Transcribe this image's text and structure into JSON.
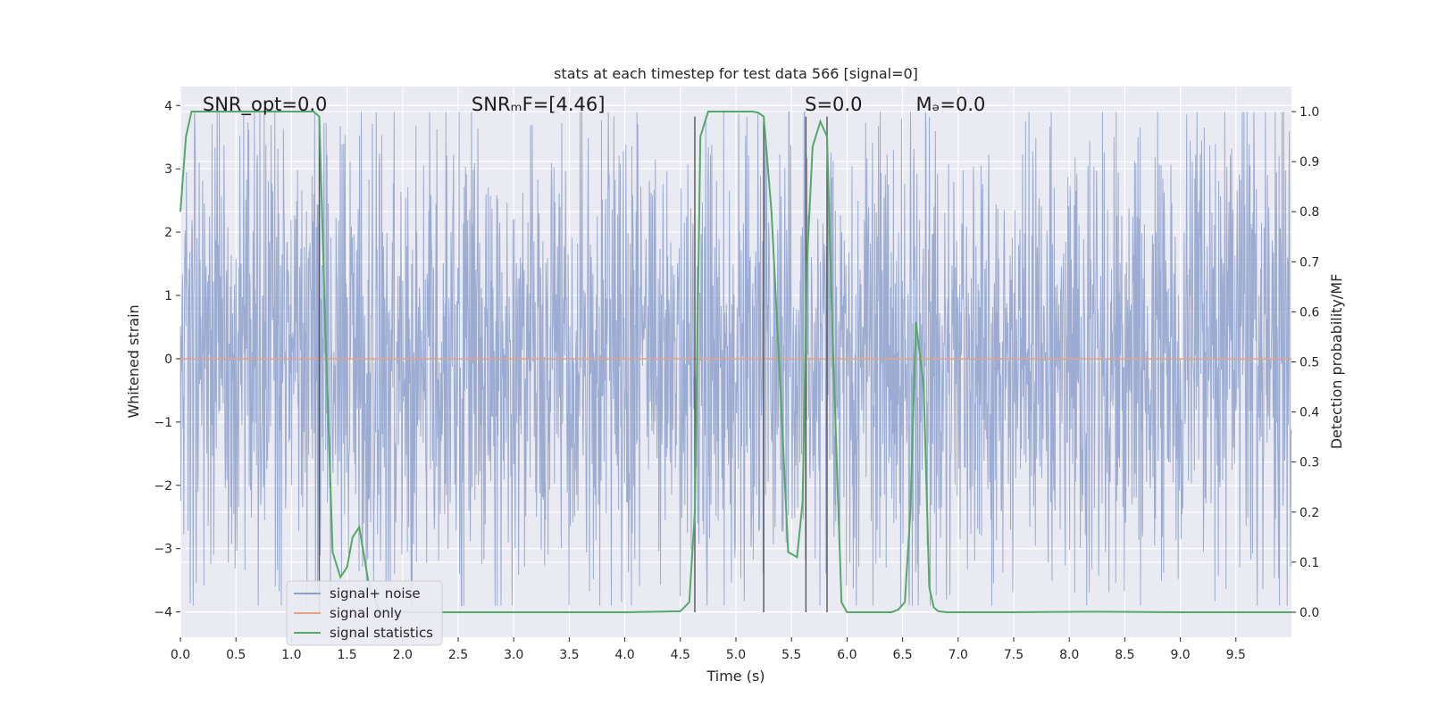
{
  "chart_data": {
    "type": "line",
    "title": "stats at each timestep for test data 566 [signal=0]",
    "xlabel": "Time (s)",
    "ylabel_left": "Whitened strain",
    "ylabel_right": "Detection probability/MF",
    "xlim": [
      0,
      10
    ],
    "ylim_left": [
      -4.4,
      4.3
    ],
    "ylim_right": [
      -0.05,
      1.05
    ],
    "x_ticks": [
      "0.0",
      "0.5",
      "1.0",
      "1.5",
      "2.0",
      "2.5",
      "3.0",
      "3.5",
      "4.0",
      "4.5",
      "5.0",
      "5.5",
      "6.0",
      "6.5",
      "7.0",
      "7.5",
      "8.0",
      "8.5",
      "9.0",
      "9.5"
    ],
    "y_ticks_left": [
      "4",
      "3",
      "2",
      "1",
      "0",
      "−1",
      "−2",
      "−3",
      "−4"
    ],
    "y_ticks_right": [
      "1.0",
      "0.9",
      "0.8",
      "0.7",
      "0.6",
      "0.5",
      "0.4",
      "0.3",
      "0.2",
      "0.1",
      "0.0"
    ],
    "grid": true,
    "legend_position": "bottom-left",
    "annotations": [
      {
        "id": "snr-opt",
        "text": "SNR_opt=0.0",
        "x": 0.2
      },
      {
        "id": "snr-mf",
        "text": "SNRₘF=[4.46]",
        "x": 2.62
      },
      {
        "id": "s-value",
        "text": "S=0.0",
        "x": 5.62
      },
      {
        "id": "mc-value",
        "text": "Mₔ=0.0",
        "x": 6.62
      }
    ],
    "vertical_lines_x": [
      1.25,
      4.63,
      5.25,
      5.63,
      5.82
    ],
    "series": [
      {
        "name": "signal+ noise",
        "color": "#8da0cb",
        "note": "dense whitened noise, amplitude mostly within about ±2.5, occasional spikes to about ±3.7",
        "envelope": {
          "typical_abs": 2.3,
          "max_abs": 3.9
        }
      },
      {
        "name": "signal only",
        "color": "#e8a184",
        "y": 0
      },
      {
        "name": "signal statistics",
        "color": "#55a868",
        "axis": "right",
        "x": [
          0.0,
          0.05,
          0.1,
          0.2,
          0.5,
          1.0,
          1.2,
          1.25,
          1.3,
          1.37,
          1.44,
          1.5,
          1.55,
          1.61,
          1.7,
          1.8,
          2.0,
          3.0,
          4.0,
          4.5,
          4.58,
          4.63,
          4.68,
          4.75,
          5.0,
          5.15,
          5.2,
          5.25,
          5.32,
          5.4,
          5.47,
          5.55,
          5.6,
          5.64,
          5.69,
          5.76,
          5.82,
          5.87,
          5.95,
          6.0,
          6.2,
          6.4,
          6.46,
          6.52,
          6.57,
          6.62,
          6.69,
          6.74,
          6.78,
          6.82,
          6.9,
          7.5,
          8.2,
          9.0,
          10.0
        ],
        "y": [
          0.8,
          0.95,
          1.0,
          1.0,
          1.0,
          1.0,
          1.0,
          0.99,
          0.6,
          0.12,
          0.07,
          0.09,
          0.15,
          0.17,
          0.05,
          0.0,
          0.0,
          0.0,
          0.0,
          0.002,
          0.02,
          0.2,
          0.95,
          1.0,
          1.0,
          1.0,
          0.998,
          0.99,
          0.8,
          0.45,
          0.12,
          0.11,
          0.22,
          0.7,
          0.93,
          0.98,
          0.95,
          0.55,
          0.02,
          0.0,
          0.0,
          0.0,
          0.005,
          0.02,
          0.2,
          0.58,
          0.45,
          0.05,
          0.01,
          0.002,
          0.0,
          0.0,
          0.001,
          0.0,
          0.0
        ]
      }
    ]
  }
}
